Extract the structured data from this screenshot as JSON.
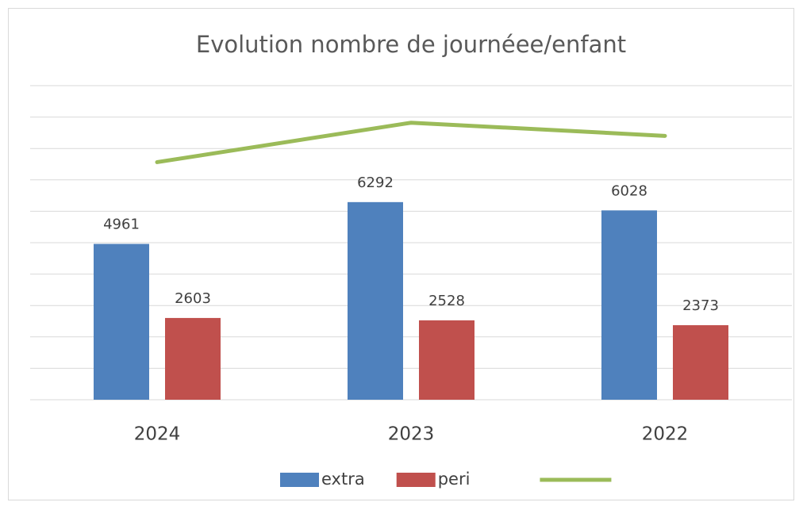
{
  "chart_data": {
    "type": "bar",
    "title": "Evolution nombre de journéee/enfant",
    "categories": [
      "2024",
      "2023",
      "2022"
    ],
    "series": [
      {
        "name": "extra",
        "color": "#4f81bd",
        "values": [
          4961,
          6292,
          6028
        ]
      },
      {
        "name": "peri",
        "color": "#c0504d",
        "values": [
          2603,
          2528,
          2373
        ]
      },
      {
        "type": "line",
        "color": "#9bbb59",
        "values": [
          7564,
          8820,
          8401
        ]
      }
    ],
    "ylim": [
      0,
      10000
    ],
    "yticks": [
      0,
      1000,
      2000,
      3000,
      4000,
      5000,
      6000,
      7000,
      8000,
      9000,
      10000
    ],
    "grid": true,
    "legend": "bottom"
  }
}
